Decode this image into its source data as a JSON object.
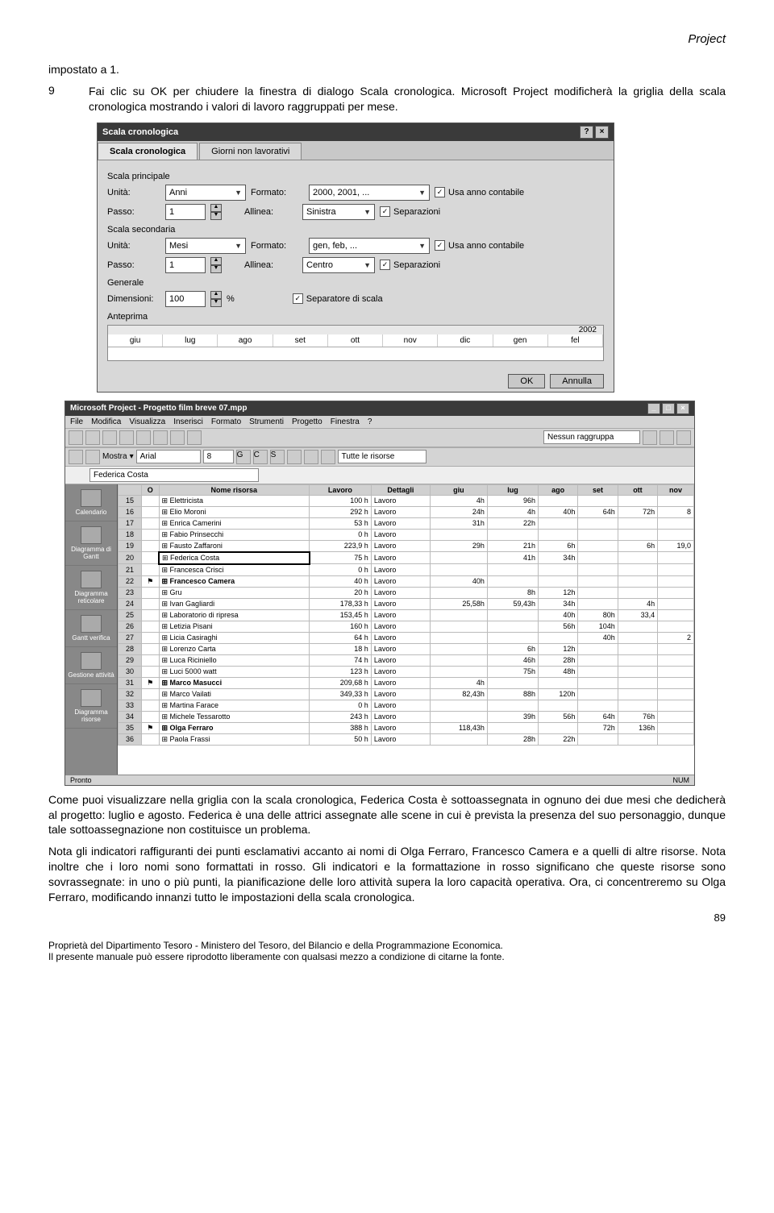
{
  "header": {
    "project": "Project"
  },
  "line1": "impostato a 1.",
  "step9": {
    "num": "9",
    "text": "Fai clic su OK per chiudere la finestra di dialogo Scala cronologica. Microsoft Project modificherà la griglia della scala cronologica mostrando i valori di lavoro raggruppati per mese."
  },
  "dialog": {
    "title": "Scala cronologica",
    "tabs": {
      "t1": "Scala cronologica",
      "t2": "Giorni non lavorativi"
    },
    "groups": {
      "g1": "Scala principale",
      "g2": "Scala secondaria",
      "g3": "Generale",
      "g4": "Anteprima"
    },
    "labels": {
      "unita": "Unità:",
      "formato": "Formato:",
      "passo": "Passo:",
      "allinea": "Allinea:",
      "dimensioni": "Dimensioni:",
      "percent": "%"
    },
    "values": {
      "p_unita": "Anni",
      "p_formato": "2000, 2001, ...",
      "p_passo": "1",
      "p_allinea": "Sinistra",
      "s_unita": "Mesi",
      "s_formato": "gen, feb, ...",
      "s_passo": "1",
      "s_allinea": "Centro",
      "dim": "100"
    },
    "checks": {
      "usa_anno": "Usa anno contabile",
      "separazioni": "Separazioni",
      "sep_scala": "Separatore di scala"
    },
    "preview": {
      "year": "2002",
      "months": [
        "giu",
        "lug",
        "ago",
        "set",
        "ott",
        "nov",
        "dic",
        "gen",
        "fel"
      ]
    },
    "buttons": {
      "ok": "OK",
      "cancel": "Annulla"
    }
  },
  "app": {
    "title": "Microsoft Project - Progetto film breve 07.mpp",
    "menu": [
      "File",
      "Modifica",
      "Visualizza",
      "Inserisci",
      "Formato",
      "Strumenti",
      "Progetto",
      "Finestra",
      "?"
    ],
    "toolbar": {
      "mostra": "Mostra",
      "font": "Arial",
      "size": "8",
      "group": "Nessun raggruppa",
      "filter": "Tutte le risorse"
    },
    "namebar": {
      "value": "Federica Costa"
    },
    "sidebar": [
      "Calendario",
      "Diagramma di Gantt",
      "Diagramma reticolare",
      "Gantt verifica",
      "Gestione attività",
      "Diagramma risorse"
    ],
    "headers": {
      "o": "O",
      "nome": "Nome risorsa",
      "lavoro": "Lavoro",
      "dett": "Dettagli",
      "months": [
        "giu",
        "lug",
        "ago",
        "set",
        "ott",
        "nov"
      ]
    },
    "rows": [
      {
        "id": "15",
        "ind": "",
        "name": "Elettricista",
        "lav": "100 h",
        "det": "Lavoro",
        "v": [
          "4h",
          "96h",
          "",
          "",
          "",
          ""
        ]
      },
      {
        "id": "16",
        "ind": "",
        "name": "Elio Moroni",
        "lav": "292 h",
        "det": "Lavoro",
        "v": [
          "24h",
          "4h",
          "40h",
          "64h",
          "72h",
          "8"
        ]
      },
      {
        "id": "17",
        "ind": "",
        "name": "Enrica Camerini",
        "lav": "53 h",
        "det": "Lavoro",
        "v": [
          "31h",
          "22h",
          "",
          "",
          "",
          ""
        ]
      },
      {
        "id": "18",
        "ind": "",
        "name": "Fabio Prinsecchi",
        "lav": "0 h",
        "det": "Lavoro",
        "v": [
          "",
          "",
          "",
          "",
          "",
          ""
        ]
      },
      {
        "id": "19",
        "ind": "",
        "name": "Fausto Zaffaroni",
        "lav": "223,9 h",
        "det": "Lavoro",
        "v": [
          "29h",
          "21h",
          "6h",
          "",
          "6h",
          "19,0"
        ]
      },
      {
        "id": "20",
        "ind": "",
        "name": "Federica Costa",
        "lav": "75 h",
        "det": "Lavoro",
        "v": [
          "",
          "41h",
          "34h",
          "",
          "",
          ""
        ],
        "sel": true
      },
      {
        "id": "21",
        "ind": "",
        "name": "Francesca Crisci",
        "lav": "0 h",
        "det": "Lavoro",
        "v": [
          "",
          "",
          "",
          "",
          "",
          ""
        ]
      },
      {
        "id": "22",
        "ind": "⚑",
        "name": "Francesco Camera",
        "lav": "40 h",
        "det": "Lavoro",
        "v": [
          "40h",
          "",
          "",
          "",
          "",
          ""
        ],
        "bold": true
      },
      {
        "id": "23",
        "ind": "",
        "name": "Gru",
        "lav": "20 h",
        "det": "Lavoro",
        "v": [
          "",
          "8h",
          "12h",
          "",
          "",
          ""
        ]
      },
      {
        "id": "24",
        "ind": "",
        "name": "Ivan Gagliardi",
        "lav": "178,33 h",
        "det": "Lavoro",
        "v": [
          "25,58h",
          "59,43h",
          "34h",
          "",
          "4h",
          ""
        ]
      },
      {
        "id": "25",
        "ind": "",
        "name": "Laboratorio di ripresa",
        "lav": "153,45 h",
        "det": "Lavoro",
        "v": [
          "",
          "",
          "40h",
          "80h",
          "33,4",
          ""
        ]
      },
      {
        "id": "26",
        "ind": "",
        "name": "Letizia Pisani",
        "lav": "160 h",
        "det": "Lavoro",
        "v": [
          "",
          "",
          "56h",
          "104h",
          "",
          ""
        ]
      },
      {
        "id": "27",
        "ind": "",
        "name": "Licia Casiraghi",
        "lav": "64 h",
        "det": "Lavoro",
        "v": [
          "",
          "",
          "",
          "40h",
          "",
          "2"
        ]
      },
      {
        "id": "28",
        "ind": "",
        "name": "Lorenzo Carta",
        "lav": "18 h",
        "det": "Lavoro",
        "v": [
          "",
          "6h",
          "12h",
          "",
          "",
          ""
        ]
      },
      {
        "id": "29",
        "ind": "",
        "name": "Luca Riciniello",
        "lav": "74 h",
        "det": "Lavoro",
        "v": [
          "",
          "46h",
          "28h",
          "",
          "",
          ""
        ]
      },
      {
        "id": "30",
        "ind": "",
        "name": "Luci 5000 watt",
        "lav": "123 h",
        "det": "Lavoro",
        "v": [
          "",
          "75h",
          "48h",
          "",
          "",
          ""
        ]
      },
      {
        "id": "31",
        "ind": "⚑",
        "name": "Marco Masucci",
        "lav": "209,68 h",
        "det": "Lavoro",
        "v": [
          "4h",
          "",
          "",
          "",
          "",
          ""
        ],
        "bold": true
      },
      {
        "id": "32",
        "ind": "",
        "name": "Marco Vailati",
        "lav": "349,33 h",
        "det": "Lavoro",
        "v": [
          "82,43h",
          "88h",
          "120h",
          "",
          "",
          ""
        ]
      },
      {
        "id": "33",
        "ind": "",
        "name": "Martina Farace",
        "lav": "0 h",
        "det": "Lavoro",
        "v": [
          "",
          "",
          "",
          "",
          "",
          ""
        ]
      },
      {
        "id": "34",
        "ind": "",
        "name": "Michele Tessarotto",
        "lav": "243 h",
        "det": "Lavoro",
        "v": [
          "",
          "39h",
          "56h",
          "64h",
          "76h",
          ""
        ]
      },
      {
        "id": "35",
        "ind": "⚑",
        "name": "Olga Ferraro",
        "lav": "388 h",
        "det": "Lavoro",
        "v": [
          "118,43h",
          "",
          "",
          "72h",
          "136h",
          ""
        ],
        "bold": true
      },
      {
        "id": "36",
        "ind": "",
        "name": "Paola Frassi",
        "lav": "50 h",
        "det": "Lavoro",
        "v": [
          "",
          "28h",
          "22h",
          "",
          "",
          ""
        ]
      }
    ],
    "status": {
      "left": "Pronto",
      "right": "NUM"
    }
  },
  "para2": "Come puoi visualizzare nella griglia con la scala cronologica, Federica Costa è sottoassegnata in ognuno dei due mesi che dedicherà al progetto: luglio e agosto. Federica è una delle attrici assegnate alle scene in cui è prevista la presenza del suo personaggio, dunque tale sottoassegnazione non costituisce un problema.",
  "para3": "Nota gli indicatori raffiguranti dei punti esclamativi accanto ai nomi di Olga Ferraro, Francesco Camera e a quelli di altre risorse. Nota inoltre che i loro nomi sono formattati in rosso. Gli indicatori e la formattazione in rosso significano che queste risorse sono sovrassegnate: in uno o più punti, la pianificazione delle loro attività supera la loro capacità operativa. Ora, ci concentreremo su Olga Ferraro, modificando innanzi tutto le impostazioni della scala cronologica.",
  "footer": {
    "l1": "Proprietà  del Dipartimento Tesoro - Ministero del Tesoro, del Bilancio e della Programmazione Economica.",
    "l2": "Il presente manuale può essere riprodotto liberamente con qualsasi mezzo a condizione di citarne la fonte.",
    "page": "89"
  }
}
